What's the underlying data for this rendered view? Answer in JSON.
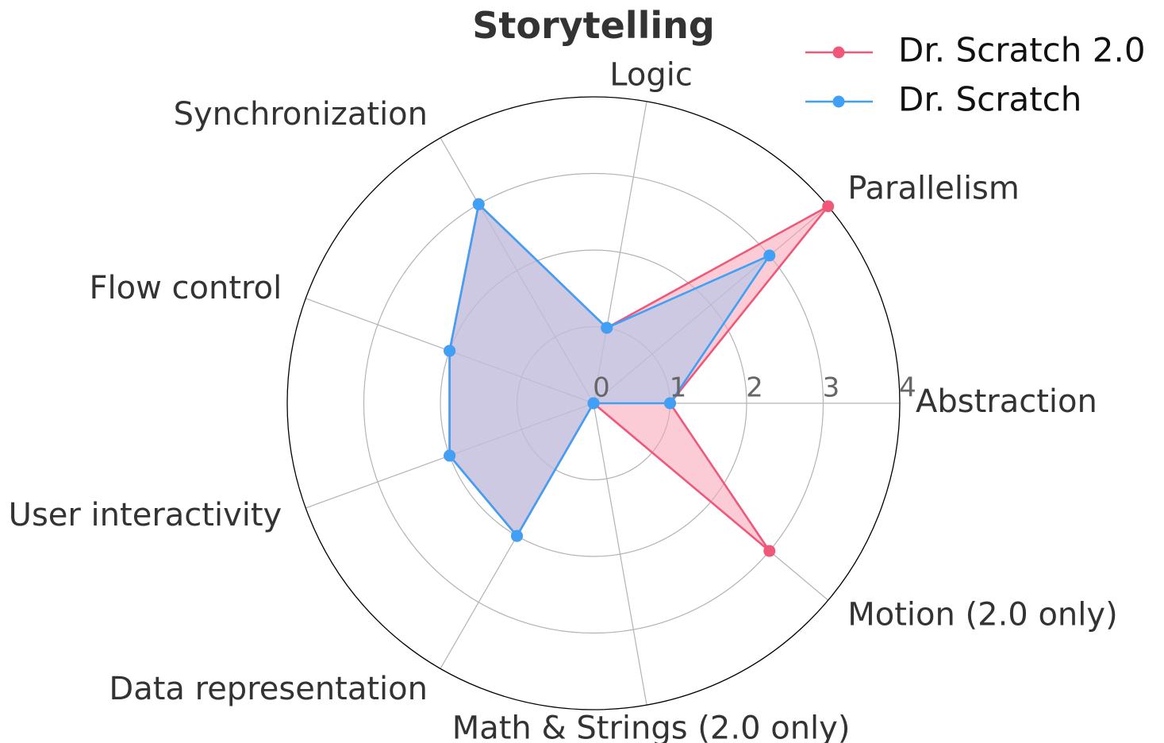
{
  "chart_data": {
    "type": "radar",
    "title": "Storytelling",
    "axes": [
      "Abstraction",
      "Parallelism",
      "Logic",
      "Synchronization",
      "Flow control",
      "User interactivity",
      "Data representation",
      "Math & Strings (2.0 only)",
      "Motion (2.0 only)"
    ],
    "rlim": [
      0,
      4
    ],
    "rticks": [
      "0",
      "1",
      "2",
      "3",
      "4"
    ],
    "grid": true,
    "legend_position": "top-right",
    "series": [
      {
        "name": "Dr. Scratch 2.0",
        "color": "#f0587a",
        "fill": "#f7a3b5",
        "values": [
          1,
          4,
          1,
          3,
          2,
          2,
          2,
          0,
          3
        ]
      },
      {
        "name": "Dr. Scratch",
        "color": "#3fa0f5",
        "fill": "#a9c6ee",
        "values": [
          1,
          3,
          1,
          3,
          2,
          2,
          2,
          0,
          0
        ]
      }
    ]
  }
}
